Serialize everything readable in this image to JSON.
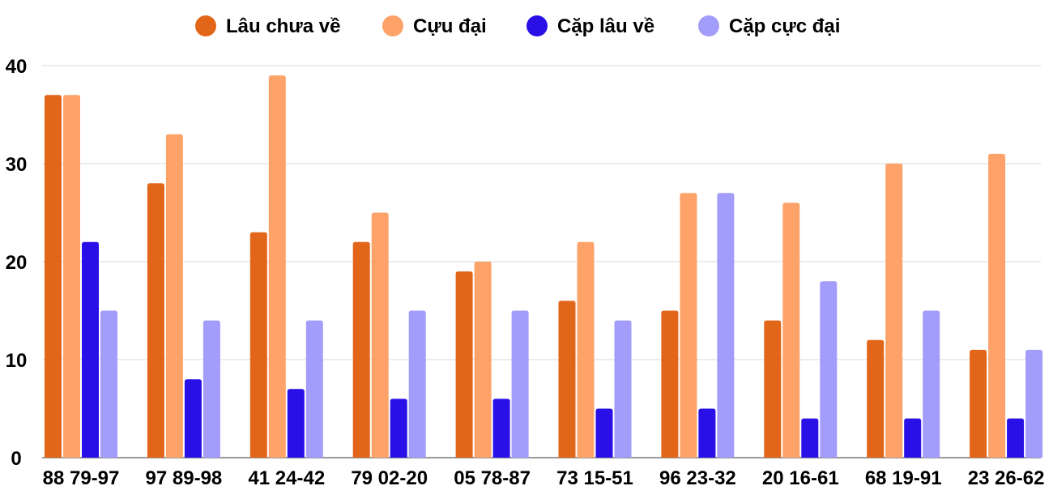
{
  "chart_data": {
    "type": "bar",
    "categories": [
      "88 79-97",
      "97 89-98",
      "41 24-42",
      "79 02-20",
      "05 78-87",
      "73 15-51",
      "96 23-32",
      "20 16-61",
      "68 19-91",
      "23 26-62"
    ],
    "series": [
      {
        "name": "Lâu chưa về",
        "color": "#e2661a",
        "values": [
          37,
          28,
          23,
          22,
          19,
          16,
          15,
          14,
          12,
          11
        ]
      },
      {
        "name": "Cựu đại",
        "color": "#fda36a",
        "values": [
          37,
          33,
          39,
          25,
          20,
          22,
          27,
          26,
          30,
          31
        ]
      },
      {
        "name": "Cặp lâu về",
        "color": "#2810e6",
        "values": [
          22,
          8,
          7,
          6,
          6,
          5,
          5,
          4,
          4,
          4
        ]
      },
      {
        "name": "Cặp cực đại",
        "color": "#a29cfb",
        "values": [
          15,
          14,
          14,
          15,
          15,
          14,
          27,
          18,
          15,
          11
        ]
      }
    ],
    "ylim": [
      0,
      40
    ],
    "yticks": [
      0,
      10,
      20,
      30,
      40
    ],
    "legend_position": "top-center",
    "grid": true
  }
}
